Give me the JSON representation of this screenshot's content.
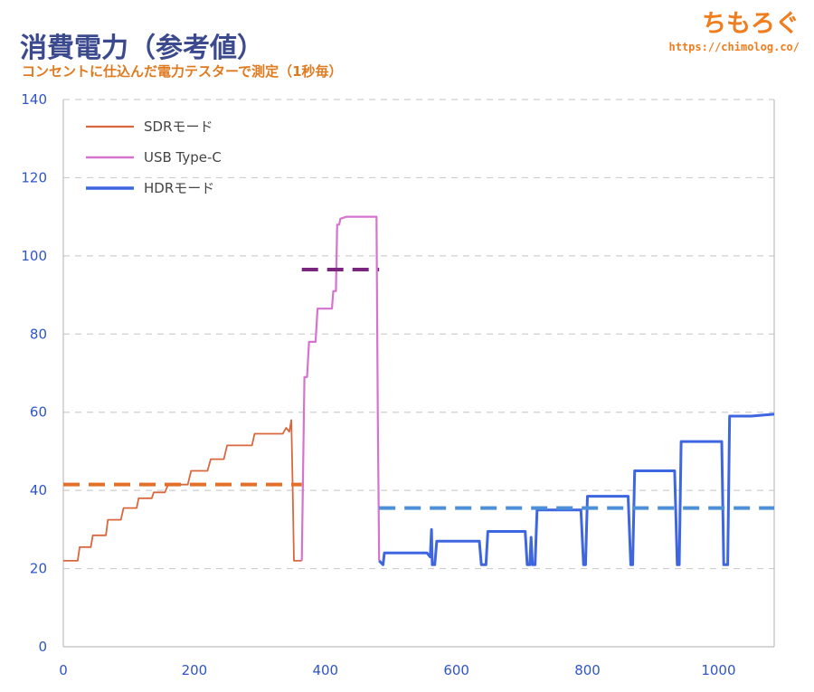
{
  "header": {
    "title": "消費電力（参考値）",
    "subtitle": "コンセントに仕込んだ電力テスターで測定（1秒毎）",
    "brand_logo": "ちもろぐ",
    "brand_url": "https://chimolog.co/"
  },
  "colors": {
    "sdr": "#d9683f",
    "usb": "#d673cf",
    "hdr": "#3e66e0",
    "sdr_avg": "#e2702a",
    "usb_avg": "#7a2580",
    "hdr_avg": "#4b90d9",
    "axis_text": "#2f55c9",
    "grid": "#cfcfcf"
  },
  "chart_data": {
    "type": "line",
    "title": "",
    "xlabel": "",
    "ylabel": "",
    "xlim": [
      0,
      1085
    ],
    "ylim": [
      0,
      140
    ],
    "x_ticks": [
      0,
      200,
      400,
      600,
      800,
      1000
    ],
    "y_ticks": [
      0,
      20,
      40,
      60,
      80,
      100,
      120,
      140
    ],
    "grid": "horizontal dashed",
    "legend_position": "top-left",
    "series": [
      {
        "name": "SDRモード",
        "key": "sdr",
        "points": [
          [
            0,
            22
          ],
          [
            22,
            22
          ],
          [
            25,
            25.5
          ],
          [
            42,
            25.5
          ],
          [
            45,
            28.5
          ],
          [
            65,
            28.5
          ],
          [
            68,
            32.5
          ],
          [
            88,
            32.5
          ],
          [
            92,
            35.5
          ],
          [
            112,
            35.5
          ],
          [
            115,
            38
          ],
          [
            135,
            38
          ],
          [
            138,
            39.5
          ],
          [
            155,
            39.5
          ],
          [
            160,
            41.5
          ],
          [
            190,
            41.5
          ],
          [
            195,
            45
          ],
          [
            220,
            45
          ],
          [
            225,
            48
          ],
          [
            245,
            48
          ],
          [
            250,
            51.5
          ],
          [
            288,
            51.5
          ],
          [
            292,
            54.5
          ],
          [
            335,
            54.5
          ],
          [
            340,
            56
          ],
          [
            345,
            55
          ],
          [
            348,
            58
          ],
          [
            350,
            42
          ],
          [
            352,
            22
          ],
          [
            364,
            22
          ]
        ]
      },
      {
        "name": "USB Type-C",
        "key": "usb",
        "points": [
          [
            364,
            22
          ],
          [
            366,
            45
          ],
          [
            368,
            69
          ],
          [
            372,
            69
          ],
          [
            375,
            78
          ],
          [
            385,
            78
          ],
          [
            388,
            86.5
          ],
          [
            410,
            86.5
          ],
          [
            412,
            91
          ],
          [
            416,
            91
          ],
          [
            418,
            108
          ],
          [
            421,
            108
          ],
          [
            423,
            109.5
          ],
          [
            432,
            110
          ],
          [
            450,
            110
          ],
          [
            466,
            110
          ],
          [
            478,
            110
          ],
          [
            480,
            60
          ],
          [
            482,
            22
          ]
        ]
      },
      {
        "name": "HDRモード",
        "key": "hdr",
        "points": [
          [
            482,
            22
          ],
          [
            488,
            21
          ],
          [
            490,
            24
          ],
          [
            505,
            24
          ],
          [
            520,
            24
          ],
          [
            555,
            24
          ],
          [
            560,
            23
          ],
          [
            562,
            30
          ],
          [
            563,
            21
          ],
          [
            567,
            21
          ],
          [
            570,
            27
          ],
          [
            600,
            27
          ],
          [
            625,
            27
          ],
          [
            635,
            27
          ],
          [
            638,
            21
          ],
          [
            645,
            21
          ],
          [
            648,
            29.5
          ],
          [
            690,
            29.5
          ],
          [
            705,
            29.5
          ],
          [
            708,
            21
          ],
          [
            712,
            21
          ],
          [
            714,
            28
          ],
          [
            716,
            21
          ],
          [
            720,
            21
          ],
          [
            723,
            35
          ],
          [
            750,
            35
          ],
          [
            785,
            35
          ],
          [
            790,
            35
          ],
          [
            794,
            21
          ],
          [
            797,
            21
          ],
          [
            800,
            38.5
          ],
          [
            840,
            38.5
          ],
          [
            862,
            38.5
          ],
          [
            866,
            21
          ],
          [
            869,
            21
          ],
          [
            872,
            45
          ],
          [
            900,
            45
          ],
          [
            933,
            45
          ],
          [
            937,
            21
          ],
          [
            940,
            21
          ],
          [
            943,
            52.5
          ],
          [
            980,
            52.5
          ],
          [
            1005,
            52.5
          ],
          [
            1008,
            21
          ],
          [
            1014,
            21
          ],
          [
            1017,
            59
          ],
          [
            1050,
            59
          ],
          [
            1085,
            59.5
          ]
        ]
      }
    ],
    "averages": [
      {
        "key": "sdr_avg",
        "value": 41.5,
        "x_start": 0,
        "x_end": 364
      },
      {
        "key": "usb_avg",
        "value": 96.5,
        "x_start": 364,
        "x_end": 482
      },
      {
        "key": "hdr_avg",
        "value": 35.5,
        "x_start": 482,
        "x_end": 1085
      }
    ]
  }
}
